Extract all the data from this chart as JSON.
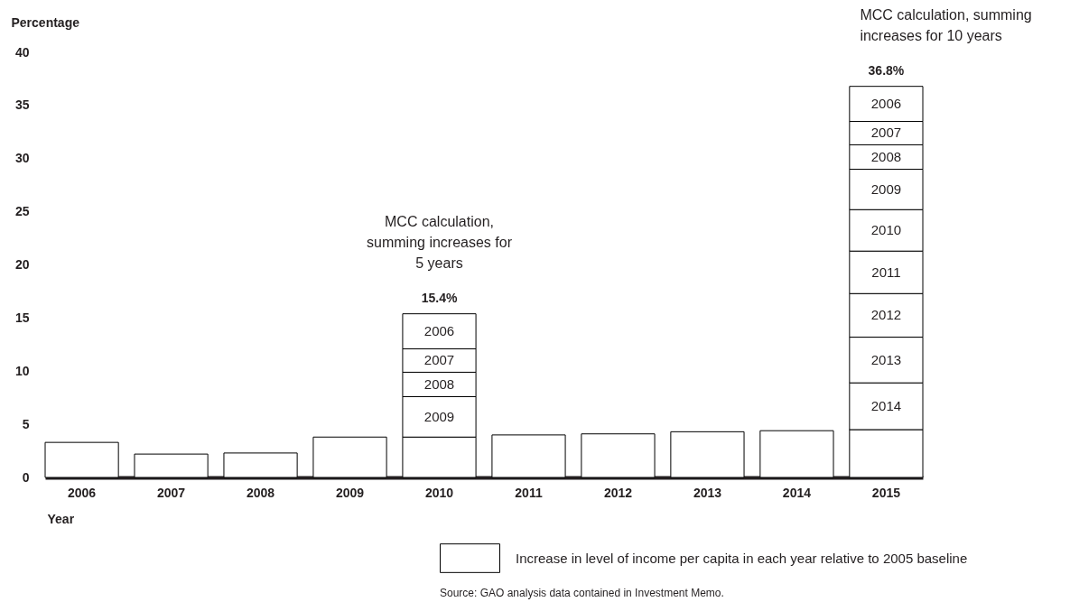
{
  "chart_data": {
    "type": "bar",
    "stacked": true,
    "ylabel": "Percentage",
    "xlabel": "Year",
    "categories": [
      "2006",
      "2007",
      "2008",
      "2009",
      "2010",
      "2011",
      "2012",
      "2013",
      "2014",
      "2015"
    ],
    "series": [
      {
        "name": "Increase in level of income per capita in each year relative to 2005 baseline",
        "color": "#ffffff",
        "values": [
          3.3,
          2.2,
          2.3,
          3.8,
          3.8,
          4.0,
          4.1,
          4.3,
          4.4,
          4.5
        ]
      },
      {
        "name": "2014",
        "color": "#ffffff",
        "values": [
          null,
          null,
          null,
          null,
          null,
          null,
          null,
          null,
          null,
          4.4
        ]
      },
      {
        "name": "2013",
        "color": "#ffffff",
        "values": [
          null,
          null,
          null,
          null,
          null,
          null,
          null,
          null,
          null,
          4.3
        ]
      },
      {
        "name": "2012",
        "color": "#ffffff",
        "values": [
          null,
          null,
          null,
          null,
          null,
          null,
          null,
          null,
          null,
          4.1
        ]
      },
      {
        "name": "2011",
        "color": "#ffffff",
        "values": [
          null,
          null,
          null,
          null,
          null,
          null,
          null,
          null,
          null,
          4.0
        ]
      },
      {
        "name": "2010",
        "color": "#ffffff",
        "values": [
          null,
          null,
          null,
          null,
          null,
          null,
          null,
          null,
          null,
          3.9
        ]
      },
      {
        "name": "2009",
        "color": "#ffffff",
        "values": [
          null,
          null,
          null,
          null,
          3.8,
          null,
          null,
          null,
          null,
          3.8
        ]
      },
      {
        "name": "2008",
        "color": "#ffffff",
        "values": [
          null,
          null,
          null,
          null,
          2.3,
          null,
          null,
          null,
          null,
          2.3
        ]
      },
      {
        "name": "2007",
        "color": "#ffffff",
        "values": [
          null,
          null,
          null,
          null,
          2.2,
          null,
          null,
          null,
          null,
          2.2
        ]
      },
      {
        "name": "2006",
        "color": "#ffffff",
        "values": [
          null,
          null,
          null,
          null,
          3.3,
          null,
          null,
          null,
          null,
          3.3
        ]
      }
    ],
    "totals": [
      null,
      null,
      null,
      null,
      "15.4%",
      null,
      null,
      null,
      null,
      "36.8%"
    ],
    "annotations": [
      {
        "text": "MCC calculation,\nsumming increases for\n5 years",
        "x": "2010",
        "y": 15.4
      },
      {
        "text": "MCC calculation, summing\nincreases for 10 years",
        "x": "2015",
        "y": 36.8
      },
      "Source: GAO analysis data contained in Investment Memo."
    ],
    "ylim": [
      0,
      40
    ],
    "yticks": [
      0,
      5,
      10,
      15,
      20,
      25,
      30,
      35,
      40
    ],
    "grid": false,
    "legend": "bottom right"
  }
}
